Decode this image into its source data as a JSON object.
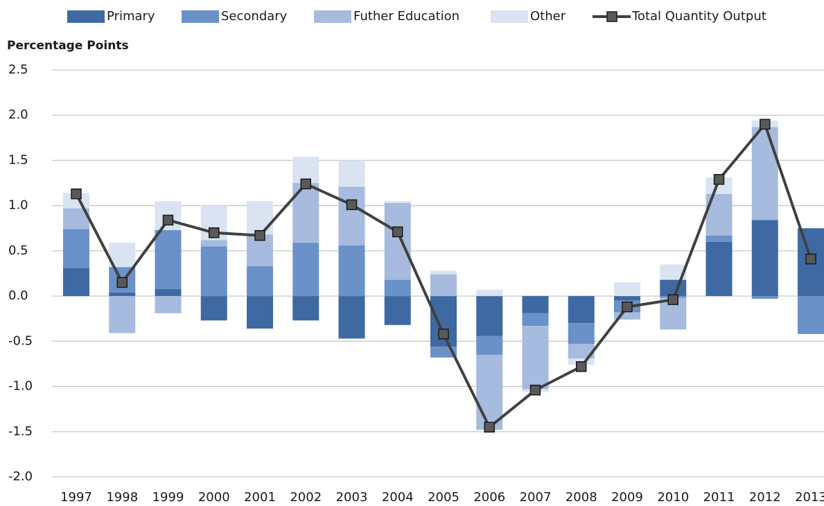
{
  "chart_data": {
    "type": "bar",
    "stacked": true,
    "y_label": "Percentage Points",
    "categories": [
      "1997",
      "1998",
      "1999",
      "2000",
      "2001",
      "2002",
      "2003",
      "2004",
      "2005",
      "2006",
      "2007",
      "2008",
      "2009",
      "2010",
      "2011",
      "2012",
      "2013"
    ],
    "series": [
      {
        "name": "Primary",
        "color": "#3e69a3",
        "values": [
          0.31,
          0.04,
          0.08,
          -0.27,
          -0.36,
          -0.27,
          -0.47,
          -0.32,
          -0.56,
          -0.44,
          -0.19,
          -0.3,
          -0.05,
          0.18,
          0.6,
          0.84,
          0.75
        ]
      },
      {
        "name": "Secondary",
        "color": "#6a91c8",
        "values": [
          0.43,
          0.28,
          0.65,
          0.55,
          0.33,
          0.59,
          0.56,
          0.18,
          -0.12,
          -0.21,
          -0.14,
          -0.23,
          -0.13,
          -0.02,
          0.07,
          -0.03,
          -0.42
        ]
      },
      {
        "name": "Futher Education",
        "color": "#a6bbdd",
        "values": [
          0.23,
          -0.41,
          -0.19,
          0.07,
          0.35,
          0.66,
          0.65,
          0.85,
          0.24,
          -0.83,
          -0.7,
          -0.16,
          -0.08,
          -0.35,
          0.46,
          1.03,
          0
        ]
      },
      {
        "name": "Other",
        "color": "#dae3f2",
        "values": [
          0.17,
          0.27,
          0.32,
          0.38,
          0.37,
          0.29,
          0.29,
          0.02,
          0.04,
          0.07,
          -0.03,
          -0.07,
          0.15,
          0.17,
          0.18,
          0.07,
          0
        ]
      },
      {
        "name": "Total Quantity Output",
        "type": "line",
        "color": "#404040",
        "values": [
          1.13,
          0.15,
          0.84,
          0.7,
          0.67,
          1.24,
          1.01,
          0.71,
          -0.42,
          -1.45,
          -1.04,
          -0.78,
          -0.12,
          -0.04,
          1.29,
          1.9,
          0.41
        ]
      }
    ],
    "ylim": [
      -2.0,
      2.5
    ],
    "yticks": [
      {
        "value": -2,
        "label": "-2.0"
      },
      -1.5,
      {
        "value": -1,
        "label": "-1.0"
      },
      -0.5,
      {
        "value": 0,
        "label": "0.0"
      },
      0.5,
      {
        "value": 1,
        "label": "1.0"
      },
      1.5,
      {
        "value": 2,
        "label": "2.0"
      },
      2.5
    ],
    "grid": true,
    "legend": "top"
  }
}
